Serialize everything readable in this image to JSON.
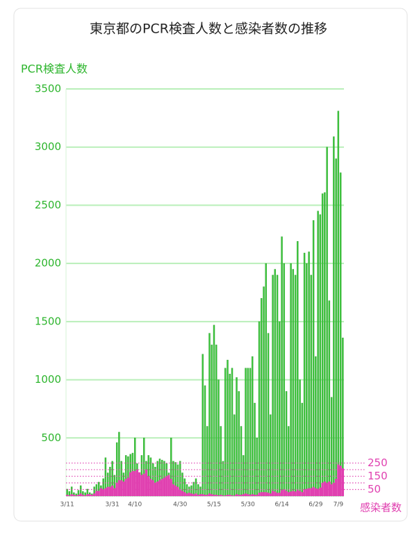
{
  "chart_data": {
    "type": "bar",
    "title": "東京都のPCR検査人数と感染者数の推移",
    "y_label": "PCR検査人数",
    "y2_label": "感染者数",
    "categories": [
      "3/11",
      null,
      null,
      null,
      null,
      null,
      null,
      null,
      null,
      null,
      null,
      null,
      null,
      null,
      null,
      null,
      null,
      null,
      null,
      null,
      "3/31",
      null,
      null,
      null,
      null,
      null,
      null,
      null,
      null,
      null,
      "4/10",
      null,
      null,
      null,
      null,
      null,
      null,
      null,
      null,
      null,
      null,
      null,
      null,
      null,
      null,
      null,
      null,
      null,
      null,
      null,
      "4/30",
      null,
      null,
      null,
      null,
      null,
      null,
      null,
      null,
      null,
      null,
      null,
      null,
      null,
      null,
      "5/15",
      null,
      null,
      null,
      null,
      null,
      null,
      null,
      null,
      null,
      null,
      null,
      null,
      null,
      null,
      "5/30",
      null,
      null,
      null,
      null,
      null,
      null,
      null,
      null,
      null,
      null,
      null,
      null,
      null,
      null,
      "6/14",
      null,
      null,
      null,
      null,
      null,
      null,
      null,
      null,
      null,
      null,
      null,
      null,
      null,
      null,
      "6/29",
      null,
      null,
      null,
      null,
      null,
      null,
      null,
      null,
      null,
      "7/9",
      null,
      null
    ],
    "series": [
      {
        "name": "PCR検査人数",
        "color": "#3cc83c",
        "axis": "y",
        "values": [
          60,
          40,
          80,
          30,
          20,
          50,
          90,
          40,
          30,
          60,
          30,
          20,
          80,
          100,
          120,
          90,
          150,
          330,
          200,
          250,
          300,
          180,
          460,
          550,
          300,
          200,
          350,
          340,
          360,
          370,
          500,
          280,
          200,
          350,
          500,
          300,
          350,
          330,
          280,
          250,
          300,
          320,
          310,
          300,
          280,
          200,
          500,
          300,
          290,
          270,
          300,
          200,
          150,
          100,
          80,
          90,
          120,
          150,
          100,
          80,
          1220,
          950,
          600,
          1400,
          1300,
          1470,
          1300,
          1000,
          600,
          300,
          1100,
          1170,
          1050,
          1100,
          700,
          1020,
          900,
          600,
          350,
          1100,
          1100,
          1100,
          1200,
          800,
          500,
          1500,
          1700,
          1800,
          2000,
          1400,
          700,
          1900,
          1950,
          1900,
          1500,
          2230,
          2000,
          900,
          600,
          2000,
          1950,
          1900,
          2190,
          1000,
          800,
          2090,
          2000,
          2100,
          1900,
          2370,
          1200,
          2450,
          2420,
          2600,
          2610,
          3000,
          1680,
          850,
          3090,
          2900,
          3310,
          2780,
          1360
        ]
      },
      {
        "name": "感染者数",
        "color": "#e040b0",
        "axis": "y2",
        "values": [
          10,
          5,
          15,
          10,
          5,
          10,
          20,
          10,
          5,
          15,
          15,
          10,
          20,
          40,
          40,
          60,
          50,
          60,
          70,
          70,
          80,
          60,
          100,
          120,
          120,
          110,
          130,
          140,
          180,
          190,
          190,
          200,
          180,
          160,
          170,
          200,
          150,
          130,
          120,
          100,
          110,
          120,
          130,
          140,
          150,
          160,
          130,
          90,
          80,
          70,
          50,
          40,
          30,
          20,
          25,
          20,
          15,
          20,
          10,
          15,
          15,
          10,
          10,
          20,
          15,
          10,
          10,
          5,
          10,
          5,
          5,
          10,
          10,
          5,
          5,
          15,
          10,
          10,
          15,
          20,
          15,
          10,
          15,
          10,
          10,
          25,
          30,
          30,
          30,
          25,
          20,
          40,
          35,
          25,
          25,
          45,
          50,
          40,
          30,
          35,
          40,
          35,
          45,
          40,
          30,
          50,
          55,
          60,
          60,
          70,
          60,
          55,
          65,
          100,
          110,
          100,
          110,
          90,
          100,
          130,
          240,
          230,
          210
        ]
      }
    ],
    "ylim": [
      0,
      3500
    ],
    "yticks": [
      500,
      1000,
      1500,
      2000,
      2500,
      3000,
      3500
    ],
    "y2lim": [
      0,
      3080
    ],
    "y2ticks": [
      50,
      {
        "value": 100,
        "label": null
      },
      150,
      {
        "value": 200,
        "label": null
      },
      250
    ],
    "grid": true
  }
}
